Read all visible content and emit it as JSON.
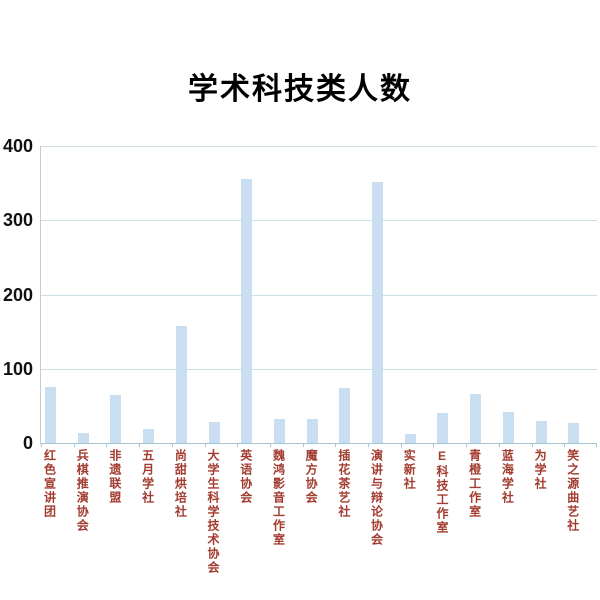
{
  "chart_data": {
    "type": "bar",
    "title": "学术科技类人数",
    "categories": [
      "红色宣讲团",
      "兵棋推演协会",
      "非遗联盟",
      "五月学社",
      "尚甜烘培社",
      "大学生科学技术协会",
      "英语协会",
      "魏鸿影音工作室",
      "魔方协会",
      "插花茶艺社",
      "演讲与辩论协会",
      "实新社",
      "E科技工作室",
      "青橙工作室",
      "蓝海学社",
      "为学社",
      "笑之源曲艺社"
    ],
    "values": [
      75,
      14,
      65,
      19,
      157,
      28,
      356,
      33,
      32,
      74,
      352,
      12,
      40,
      66,
      42,
      30,
      27
    ],
    "xlabel": "",
    "ylabel": "",
    "ylim": [
      0,
      400
    ],
    "yticks": [
      0,
      100,
      200,
      300,
      400
    ],
    "grid": true,
    "legend": false,
    "bar_color": "#c9def1",
    "gridline_color": "#ccdde4",
    "axis_color": "#a5c6d0",
    "category_label_color": "#a33c30",
    "ytick_label_color": "#111111",
    "title_color": "#000000"
  }
}
